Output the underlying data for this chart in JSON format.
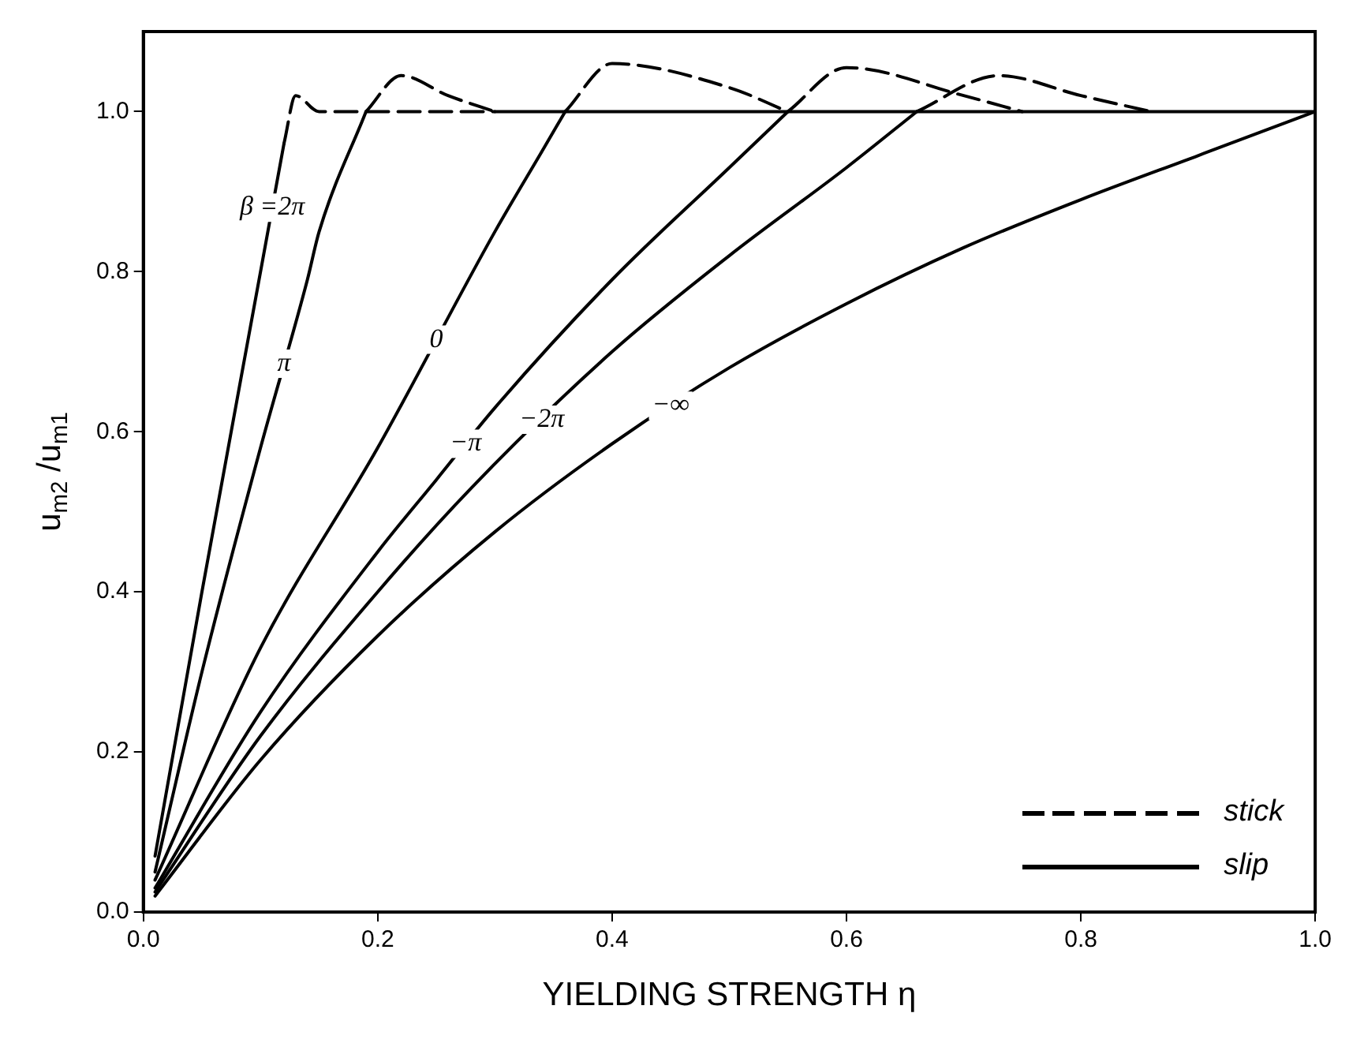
{
  "chart_data": {
    "type": "line",
    "xlabel": "YIELDING STRENGTH η",
    "ylabel": "u$_{m2}$ /u$_{m1}$",
    "xlim": [
      0,
      1.0
    ],
    "ylim": [
      0,
      1.1
    ],
    "xticks": [
      {
        "value": 0,
        "label": "0.0"
      },
      {
        "value": 0.2,
        "label": "0.2"
      },
      {
        "value": 0.4,
        "label": "0.4"
      },
      {
        "value": 0.6,
        "label": "0.6"
      },
      {
        "value": 0.8,
        "label": "0.8"
      },
      {
        "value": 1.0,
        "label": "1.0"
      }
    ],
    "yticks": [
      {
        "value": 0,
        "label": "0.0"
      },
      {
        "value": 0.2,
        "label": "0.2"
      },
      {
        "value": 0.4,
        "label": "0.4"
      },
      {
        "value": 0.6,
        "label": "0.6"
      },
      {
        "value": 0.8,
        "label": "0.8"
      },
      {
        "value": 1.0,
        "label": "1.0"
      }
    ],
    "grid": false,
    "legend": "bottom right",
    "marker": "none",
    "series": [
      {
        "name": "slip",
        "color": "#000000",
        "line_style": "solid",
        "x": [
          0.3,
          1.0
        ],
        "values": [
          1.0,
          1.0
        ]
      },
      {
        "color": "#000000",
        "line_style": "solid",
        "x": [
          0.01,
          0.05,
          0.1,
          0.12
        ],
        "values": [
          0.07,
          0.4,
          0.8,
          0.96
        ]
      },
      {
        "color": "#000000",
        "line_style": "solid",
        "x": [
          0.01,
          0.05,
          0.1,
          0.14,
          0.15,
          0.19
        ],
        "values": [
          0.05,
          0.3,
          0.58,
          0.79,
          0.85,
          1.0
        ]
      },
      {
        "color": "#000000",
        "line_style": "solid",
        "x": [
          0.01,
          0.1,
          0.2,
          0.3,
          0.34,
          0.36
        ],
        "values": [
          0.04,
          0.33,
          0.58,
          0.85,
          0.95,
          1.0
        ]
      },
      {
        "color": "#000000",
        "line_style": "solid",
        "x": [
          0.01,
          0.1,
          0.2,
          0.25,
          0.3,
          0.4,
          0.5,
          0.55
        ],
        "values": [
          0.03,
          0.25,
          0.45,
          0.54,
          0.63,
          0.79,
          0.93,
          1.0
        ]
      },
      {
        "color": "#000000",
        "line_style": "solid",
        "x": [
          0.01,
          0.1,
          0.2,
          0.28,
          0.4,
          0.5,
          0.6,
          0.66
        ],
        "values": [
          0.025,
          0.22,
          0.4,
          0.53,
          0.7,
          0.82,
          0.93,
          1.0
        ]
      },
      {
        "color": "#000000",
        "line_style": "solid",
        "x": [
          0.01,
          0.1,
          0.2,
          0.3,
          0.4,
          0.5,
          0.6,
          0.7,
          0.8,
          0.9,
          1.0
        ],
        "values": [
          0.02,
          0.19,
          0.345,
          0.475,
          0.585,
          0.68,
          0.76,
          0.83,
          0.89,
          0.945,
          1.0
        ]
      },
      {
        "name": "stick",
        "color": "#000000",
        "line_style": "dashed",
        "x": [
          0.12,
          0.13,
          0.15,
          0.2,
          0.3
        ],
        "values": [
          0.96,
          1.02,
          1.0,
          1.0,
          1.0
        ]
      },
      {
        "color": "#000000",
        "line_style": "dashed",
        "x": [
          0.19,
          0.22,
          0.26,
          0.3
        ],
        "values": [
          1.0,
          1.045,
          1.02,
          1.0
        ]
      },
      {
        "color": "#000000",
        "line_style": "dashed",
        "x": [
          0.36,
          0.4,
          0.5,
          0.55
        ],
        "values": [
          1.0,
          1.06,
          1.03,
          1.0
        ]
      },
      {
        "color": "#000000",
        "line_style": "dashed",
        "x": [
          0.55,
          0.6,
          0.7,
          0.75
        ],
        "values": [
          1.0,
          1.055,
          1.02,
          1.0
        ]
      },
      {
        "color": "#000000",
        "line_style": "dashed",
        "x": [
          0.66,
          0.73,
          0.8,
          0.86
        ],
        "values": [
          1.0,
          1.045,
          1.02,
          1.0
        ]
      }
    ],
    "annotations": [
      {
        "text": "β =2π",
        "x": 0.11,
        "y": 0.88
      },
      {
        "text": "π",
        "x": 0.12,
        "y": 0.685
      },
      {
        "text": "0",
        "x": 0.25,
        "y": 0.715
      },
      {
        "text": "−π",
        "x": 0.275,
        "y": 0.585
      },
      {
        "text": "−2π",
        "x": 0.34,
        "y": 0.615
      },
      {
        "text": "−∞",
        "x": 0.45,
        "y": 0.6325
      }
    ]
  }
}
